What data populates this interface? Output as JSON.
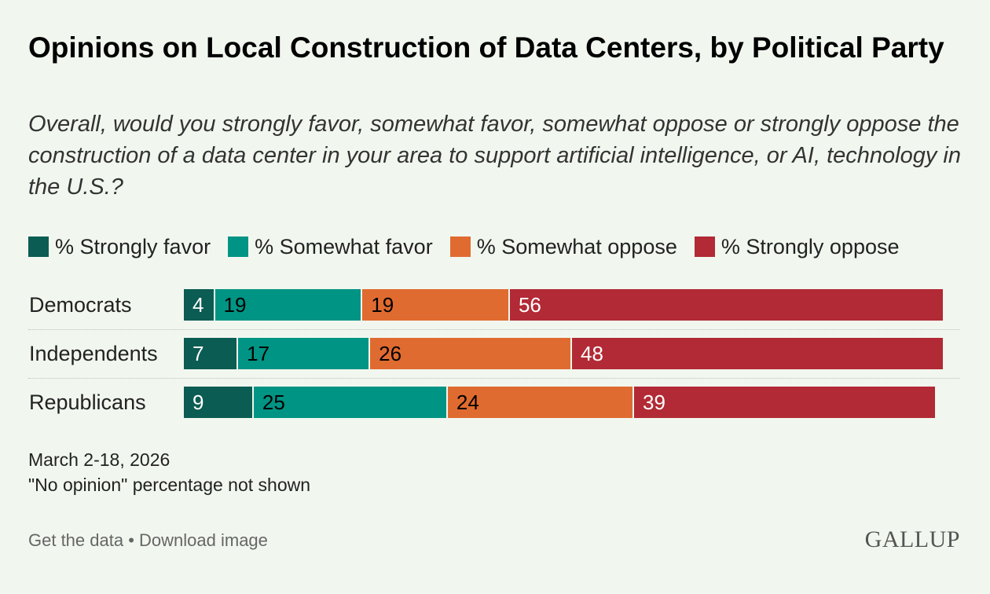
{
  "title": "Opinions on Local Construction of Data Centers, by Political Party",
  "subtitle": "Overall, would you strongly favor, somewhat favor, somewhat oppose or strongly oppose the construction of a data center in your area to support artificial intelligence, or AI, technology in the U.S.?",
  "footnotes": {
    "date": "March 2-18, 2026",
    "note": "\"No opinion\" percentage not shown"
  },
  "footer": {
    "get_data": "Get the data",
    "separator": " • ",
    "download": "Download image"
  },
  "logo": "GALLUP",
  "chart_data": {
    "type": "bar",
    "orientation": "horizontal",
    "stacked": true,
    "categories": [
      "Democrats",
      "Independents",
      "Republicans"
    ],
    "series": [
      {
        "name": "% Strongly favor",
        "color": "#0b5c52",
        "values": [
          4,
          7,
          9
        ]
      },
      {
        "name": "% Somewhat favor",
        "color": "#009484",
        "values": [
          19,
          17,
          25
        ]
      },
      {
        "name": "% Somewhat oppose",
        "color": "#e06b30",
        "values": [
          19,
          26,
          24
        ]
      },
      {
        "name": "% Strongly oppose",
        "color": "#b22a35",
        "values": [
          56,
          48,
          39
        ]
      }
    ],
    "xlim": [
      0,
      100
    ],
    "legend_position": "top",
    "grid": false
  }
}
